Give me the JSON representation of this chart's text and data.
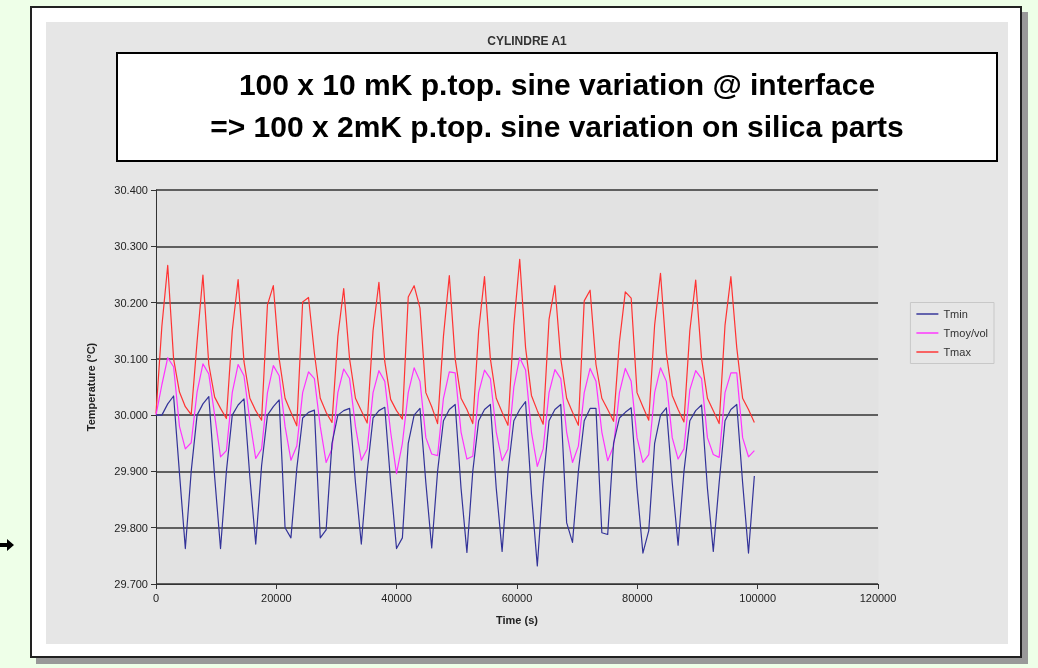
{
  "chart_data": {
    "type": "line",
    "title": "CYLINDRE A1",
    "xlabel": "Time (s)",
    "ylabel": "Temperature (°C)",
    "annotations": [
      "100 x 10 mK p.top. sine variation @ interface",
      "=> 100 x 2mK p.top. sine variation on silica parts"
    ],
    "x": [
      0,
      975,
      1950,
      2925,
      3900,
      4875,
      5850,
      6825,
      7800,
      8775,
      9750,
      10725,
      11700,
      12675,
      13650,
      14625,
      15600,
      16575,
      17550,
      18525,
      19500,
      20475,
      21450,
      22425,
      23400,
      24375,
      25350,
      26325,
      27300,
      28275,
      29250,
      30225,
      31200,
      32175,
      33150,
      34125,
      35100,
      36075,
      37050,
      38025,
      39000,
      39975,
      40950,
      41925,
      42900,
      43875,
      44850,
      45825,
      46800,
      47775,
      48750,
      49725,
      50700,
      51675,
      52650,
      53625,
      54600,
      55575,
      56550,
      57525,
      58500,
      59475,
      60450,
      61425,
      62400,
      63375,
      64350,
      65325,
      66300,
      67275,
      68250,
      69225,
      70200,
      71175,
      72150,
      73125,
      74100,
      75075,
      76050,
      77025,
      78000,
      78975,
      79950,
      80925,
      81900,
      82875,
      83850,
      84825,
      85800,
      86775,
      87750,
      88725,
      89700,
      90675,
      91650,
      92625,
      93600,
      94575,
      95550,
      96525,
      97500,
      98475,
      99450
    ],
    "series": [
      {
        "name": "Tmin",
        "color": "#333399",
        "values": [
          30.0,
          30.0,
          30.02,
          30.034,
          29.897,
          29.763,
          29.9,
          30.0,
          30.02,
          30.033,
          29.89,
          29.763,
          29.9,
          30.0,
          30.018,
          30.029,
          29.89,
          29.771,
          29.91,
          30.0,
          30.015,
          30.027,
          29.8,
          29.782,
          29.905,
          29.995,
          30.005,
          30.009,
          29.782,
          29.796,
          29.95,
          30.0,
          30.008,
          30.012,
          29.88,
          29.771,
          29.9,
          29.995,
          30.008,
          30.014,
          29.88,
          29.763,
          29.782,
          29.95,
          30.0,
          30.012,
          29.88,
          29.764,
          29.9,
          29.99,
          30.01,
          30.019,
          29.87,
          29.756,
          29.9,
          29.99,
          30.01,
          30.019,
          29.87,
          29.758,
          29.9,
          29.99,
          30.01,
          30.024,
          29.86,
          29.732,
          29.88,
          29.99,
          30.01,
          30.019,
          29.809,
          29.774,
          29.9,
          29.99,
          30.012,
          30.012,
          29.791,
          29.788,
          29.95,
          29.995,
          30.005,
          30.013,
          29.87,
          29.755,
          29.795,
          29.95,
          30.0,
          30.013,
          29.88,
          29.769,
          29.9,
          29.99,
          30.008,
          30.018,
          29.87,
          29.758,
          29.88,
          29.99,
          30.01,
          30.019,
          29.88,
          29.755,
          29.892
        ]
      },
      {
        "name": "Tmoy/vol",
        "color": "#ff33ff",
        "values": [
          30.0,
          30.054,
          30.102,
          30.086,
          29.98,
          29.94,
          29.951,
          30.041,
          30.091,
          30.073,
          30.0,
          29.926,
          29.937,
          30.04,
          30.09,
          30.07,
          29.99,
          29.923,
          29.94,
          30.04,
          30.088,
          30.07,
          29.98,
          29.92,
          29.945,
          30.04,
          30.077,
          30.065,
          29.98,
          29.916,
          29.94,
          30.04,
          30.082,
          30.065,
          29.98,
          29.92,
          29.94,
          30.04,
          30.079,
          30.06,
          29.97,
          29.896,
          29.95,
          30.04,
          30.084,
          30.06,
          29.96,
          29.931,
          29.928,
          30.03,
          30.077,
          30.075,
          29.97,
          29.922,
          29.927,
          30.04,
          30.08,
          30.065,
          29.97,
          29.919,
          29.94,
          30.05,
          30.102,
          30.08,
          29.97,
          29.909,
          29.94,
          30.04,
          30.081,
          30.065,
          29.97,
          29.916,
          29.945,
          30.04,
          30.083,
          30.06,
          29.97,
          29.919,
          29.945,
          30.04,
          30.083,
          30.06,
          29.96,
          29.916,
          29.93,
          30.04,
          30.084,
          30.06,
          29.96,
          29.922,
          29.94,
          30.045,
          30.079,
          30.065,
          29.96,
          29.93,
          29.925,
          30.04,
          30.075,
          30.075,
          29.96,
          29.926,
          29.937
        ]
      },
      {
        "name": "Tmax",
        "color": "#ff3333",
        "values": [
          30.003,
          30.158,
          30.266,
          30.1,
          30.041,
          30.015,
          30.001,
          30.13,
          30.249,
          30.09,
          30.032,
          30.012,
          29.994,
          30.15,
          30.241,
          30.095,
          30.03,
          30.008,
          29.991,
          30.196,
          30.23,
          30.1,
          30.03,
          30.005,
          29.981,
          30.201,
          30.209,
          30.11,
          30.03,
          30.005,
          29.987,
          30.14,
          30.225,
          30.1,
          30.03,
          30.008,
          29.986,
          30.15,
          30.236,
          30.095,
          30.028,
          30.008,
          29.993,
          30.21,
          30.23,
          30.19,
          30.04,
          30.015,
          29.985,
          30.14,
          30.248,
          30.1,
          30.03,
          30.01,
          29.985,
          30.15,
          30.246,
          30.1,
          30.03,
          30.005,
          29.982,
          30.16,
          30.277,
          30.12,
          30.035,
          30.008,
          29.984,
          30.17,
          30.23,
          30.1,
          30.03,
          30.005,
          29.982,
          30.203,
          30.222,
          30.09,
          30.03,
          30.01,
          29.989,
          30.13,
          30.219,
          30.208,
          30.04,
          30.015,
          29.991,
          30.16,
          30.252,
          30.11,
          30.035,
          30.01,
          29.988,
          30.15,
          30.24,
          30.1,
          30.03,
          30.008,
          29.985,
          30.16,
          30.246,
          30.12,
          30.03,
          30.01,
          29.987
        ]
      }
    ],
    "xlim": [
      0,
      120000
    ],
    "xticks": [
      0,
      20000,
      40000,
      60000,
      80000,
      100000,
      120000
    ],
    "ylim": [
      29.7,
      30.4
    ],
    "yticks": [
      {
        "value": 29.7,
        "label": "29.700"
      },
      {
        "value": 29.8,
        "label": "29.800"
      },
      {
        "value": 29.9,
        "label": "29.900"
      },
      {
        "value": 30.0,
        "label": "30.000"
      },
      {
        "value": 30.1,
        "label": "30.100"
      },
      {
        "value": 30.2,
        "label": "30.200"
      },
      {
        "value": 30.3,
        "label": "30.300"
      },
      {
        "value": 30.4,
        "label": "30.400"
      }
    ],
    "grid": "y",
    "legend": "right",
    "marker": "none",
    "line_style": "solid"
  }
}
